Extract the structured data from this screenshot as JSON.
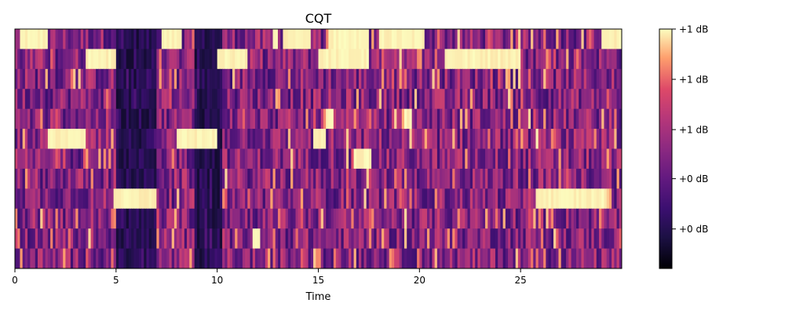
{
  "chart_data": {
    "type": "heatmap",
    "title": "CQT",
    "xlabel": "Time",
    "ylabel": "",
    "x_ticks": [
      0,
      5,
      10,
      15,
      20,
      25
    ],
    "x_tick_labels": [
      "0",
      "5",
      "10",
      "15",
      "20",
      "25"
    ],
    "xlim": [
      0,
      30
    ],
    "n_rows": 12,
    "y_ticks_shown": false,
    "colormap": "magma",
    "colorbar": {
      "tick_labels": [
        "+1 dB",
        "+1 dB",
        "+1 dB",
        "+0 dB",
        "+0 dB"
      ],
      "tick_fractions": [
        1.0,
        0.79,
        0.58,
        0.375,
        0.165
      ]
    },
    "segments_note": "approximate bright (near max) regions per row, in time units; row 0 is top",
    "bright_regions": [
      {
        "row": 0,
        "ranges": [
          [
            0.3,
            1.6
          ],
          [
            7.2,
            8.3
          ],
          [
            12.7,
            13.0
          ],
          [
            13.3,
            14.6
          ],
          [
            15.5,
            17.5
          ],
          [
            18.0,
            20.2
          ],
          [
            29.0,
            30.0
          ]
        ]
      },
      {
        "row": 1,
        "ranges": [
          [
            3.5,
            5.0
          ],
          [
            10.0,
            11.5
          ],
          [
            15.0,
            17.5
          ],
          [
            21.2,
            25.0
          ]
        ]
      },
      {
        "row": 4,
        "ranges": [
          [
            15.4,
            15.8
          ],
          [
            19.2,
            19.6
          ]
        ]
      },
      {
        "row": 5,
        "ranges": [
          [
            1.6,
            3.5
          ],
          [
            8.0,
            10.0
          ],
          [
            14.8,
            15.4
          ],
          [
            25.7,
            25.9
          ]
        ]
      },
      {
        "row": 6,
        "ranges": [
          [
            16.7,
            17.6
          ]
        ]
      },
      {
        "row": 8,
        "ranges": [
          [
            4.9,
            7.0
          ],
          [
            25.8,
            29.2
          ]
        ]
      },
      {
        "row": 10,
        "ranges": [
          [
            11.8,
            12.1
          ]
        ]
      }
    ]
  }
}
